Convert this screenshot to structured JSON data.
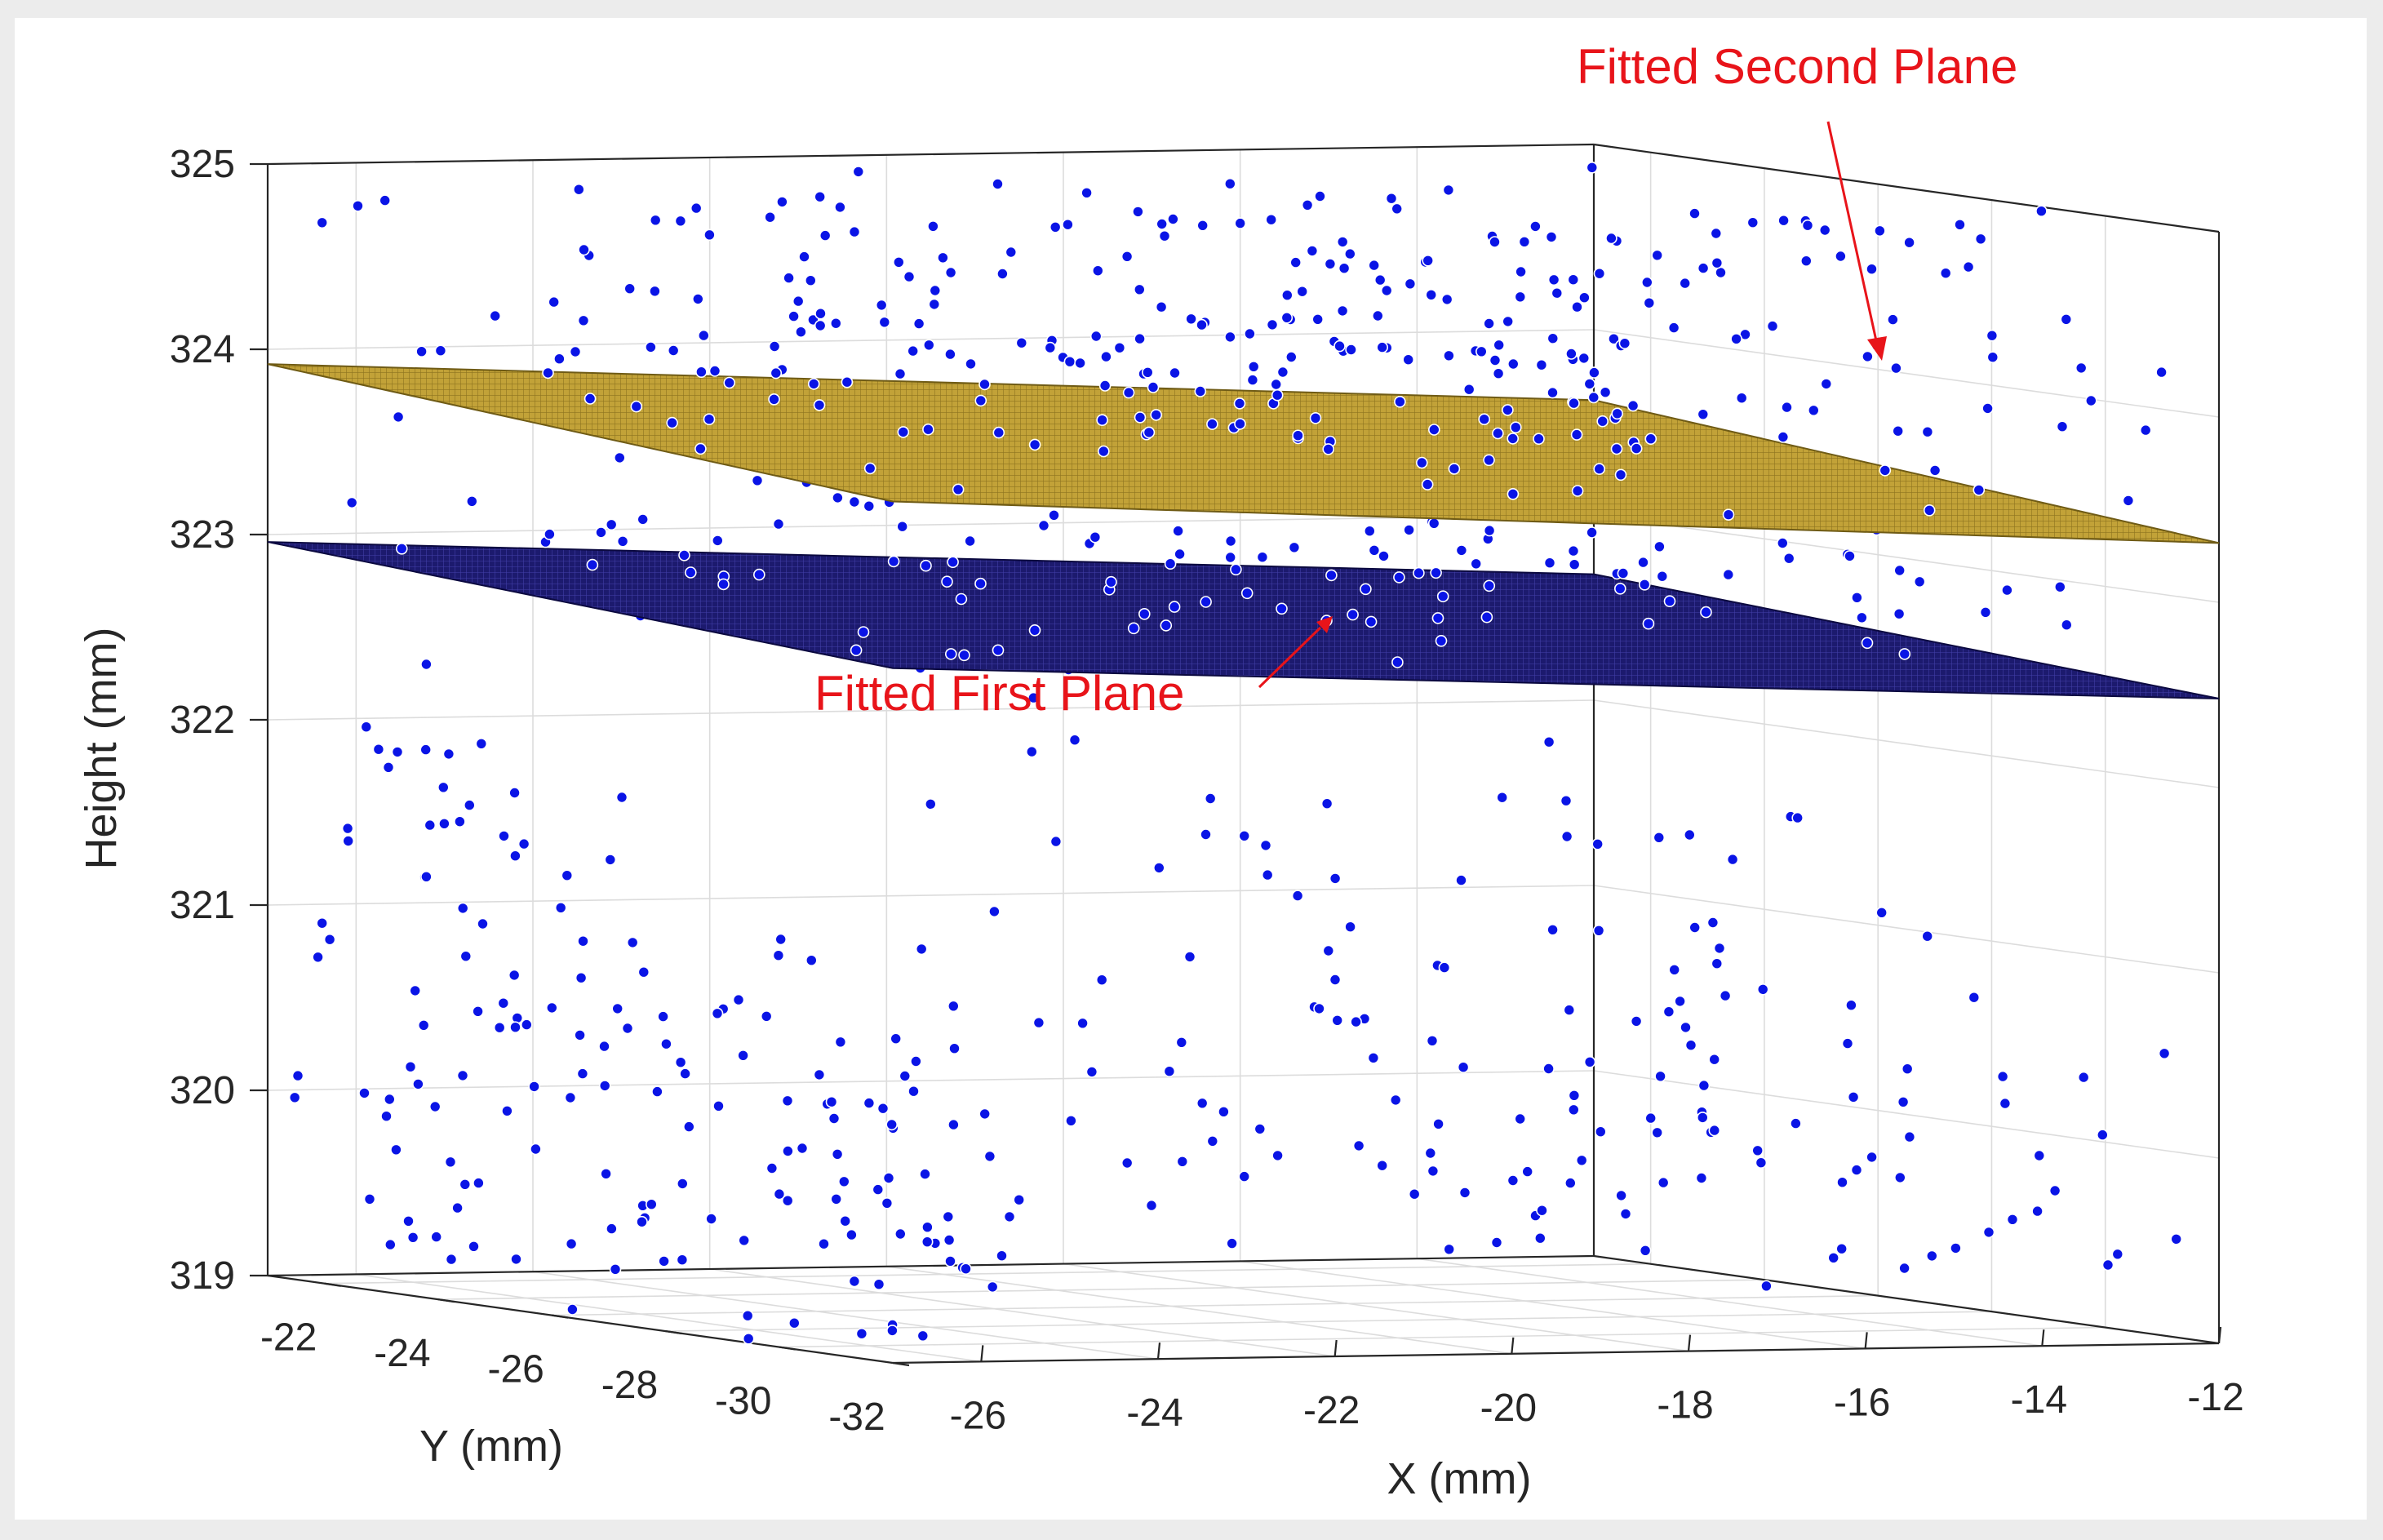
{
  "chart_data": {
    "type": "scatter",
    "subtype": "3d-scatter-with-fitted-planes",
    "title": "",
    "xlabel": "X (mm)",
    "ylabel": "Y (mm)",
    "zlabel": "Height (mm)",
    "xlim": [
      -27,
      -12
    ],
    "ylim": [
      -32,
      -21
    ],
    "zlim": [
      319,
      325
    ],
    "x_ticks": [
      -26,
      -24,
      -22,
      -20,
      -18,
      -16,
      -14,
      -12
    ],
    "y_ticks": [
      -22,
      -24,
      -26,
      -28,
      -30,
      -32
    ],
    "z_ticks": [
      319,
      320,
      321,
      322,
      323,
      324,
      325
    ],
    "x_tick_labels": [
      "-26",
      "-24",
      "-22",
      "-20",
      "-18",
      "-16",
      "-14",
      "-12"
    ],
    "y_tick_labels": [
      "-22",
      "-24",
      "-26",
      "-28",
      "-30",
      "-32"
    ],
    "z_tick_labels": [
      "319",
      "320",
      "321",
      "322",
      "323",
      "324",
      "325"
    ],
    "grid": true,
    "planes": [
      {
        "name": "Fitted Second Plane",
        "color": "#c2a238",
        "height_at_corners": [
          323.92,
          323.65,
          323.62,
          323.32
        ]
      },
      {
        "name": "Fitted First Plane",
        "color": "#1c1a6e",
        "height_at_corners": [
          322.96,
          322.75,
          322.68,
          322.48
        ]
      }
    ],
    "annotations": [
      {
        "text": "Fitted Second Plane",
        "points_to": "Fitted Second Plane"
      },
      {
        "text": "Fitted First Plane",
        "points_to": "Fitted First Plane"
      }
    ],
    "point_color": "#0a14e6",
    "point_clusters": [
      {
        "name": "points-around-second-plane",
        "x_range": [
          -27,
          -12
        ],
        "y_range": [
          -32,
          -21
        ],
        "z_range": [
          323.5,
          325
        ],
        "count": 330
      },
      {
        "name": "points-around-first-plane",
        "x_range": [
          -27,
          -12
        ],
        "y_range": [
          -32,
          -21
        ],
        "z_range": [
          322.7,
          323.3
        ],
        "count": 130
      },
      {
        "name": "left-wall-points",
        "x_range": [
          -27,
          -25
        ],
        "y_range": [
          -32,
          -21
        ],
        "z_range": [
          319,
          322.5
        ],
        "count": 160
      },
      {
        "name": "right-wall-points",
        "x_range": [
          -20.5,
          -12
        ],
        "y_range": [
          -32,
          -21
        ],
        "z_range": [
          319.3,
          322.5
        ],
        "count": 150
      }
    ]
  }
}
